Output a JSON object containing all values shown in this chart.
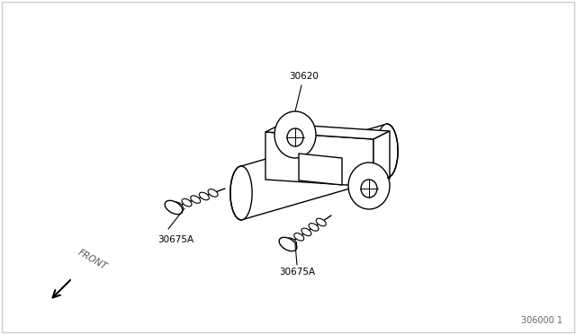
{
  "background_color": "#ffffff",
  "border_color": "#cccccc",
  "line_color": "#000000",
  "line_width": 1.0,
  "part_label_30620": "30620",
  "part_label_30675A_1": "30675A",
  "part_label_30675A_2": "30675A",
  "ref_label": "306000 1",
  "front_label": "FRONT",
  "fig_width": 6.4,
  "fig_height": 3.72,
  "dpi": 100
}
